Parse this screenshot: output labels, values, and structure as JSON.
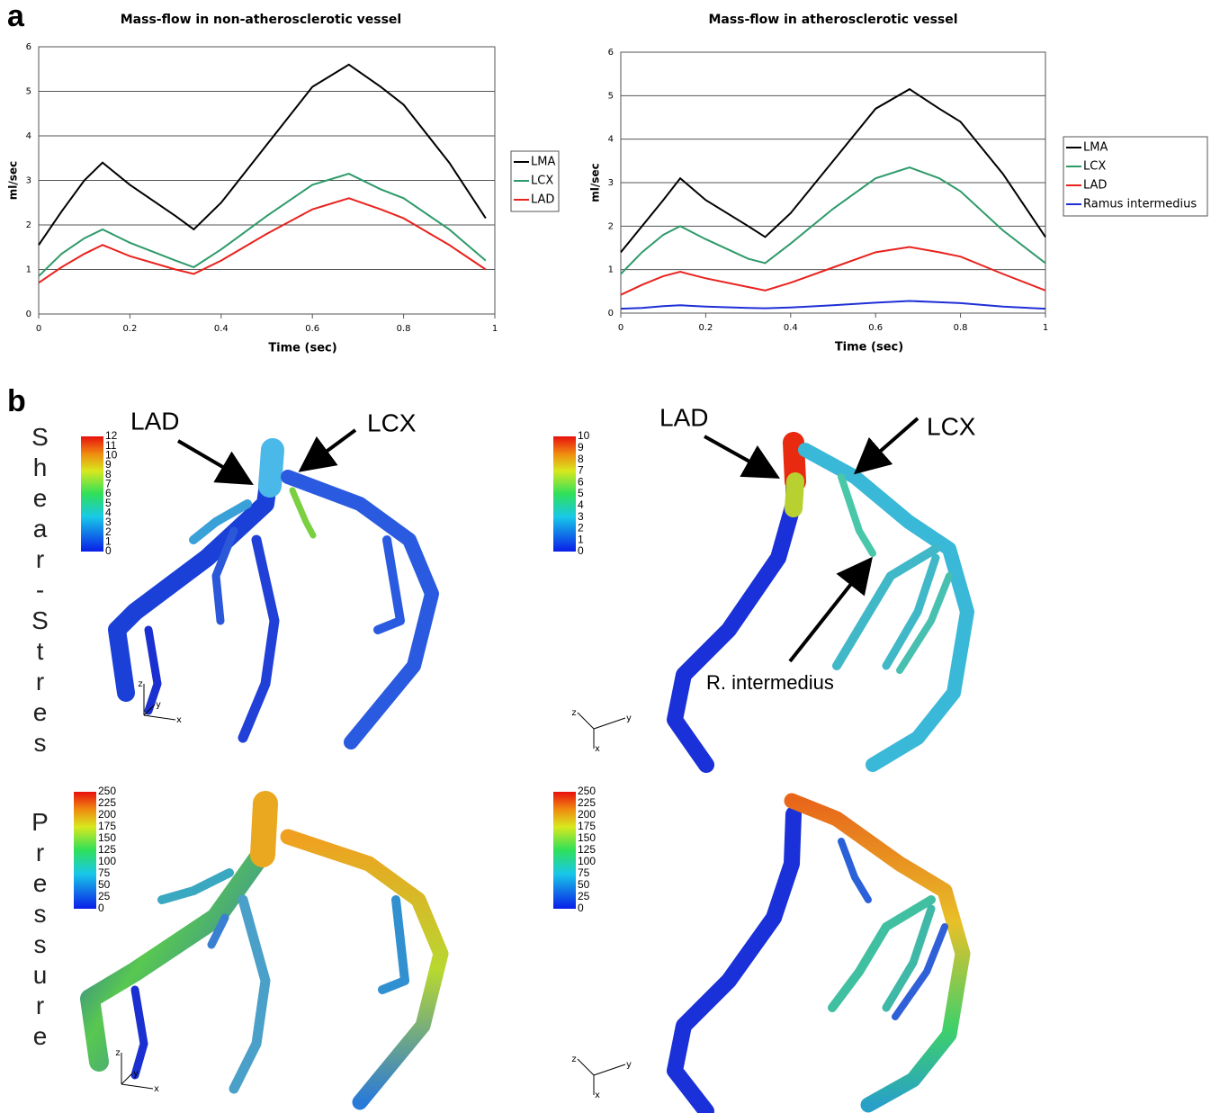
{
  "panel_a_label": "a",
  "chart_data": [
    {
      "type": "line",
      "title": "Mass-flow in non-atherosclerotic vessel",
      "xlabel": "Time (sec)",
      "ylabel": "ml/sec",
      "x": [
        0,
        0.05,
        0.1,
        0.14,
        0.2,
        0.3,
        0.34,
        0.4,
        0.5,
        0.6,
        0.68,
        0.75,
        0.8,
        0.9,
        0.98
      ],
      "series": [
        {
          "name": "LMA",
          "color": "#000000",
          "values": [
            1.55,
            2.3,
            3.0,
            3.4,
            2.9,
            2.2,
            1.9,
            2.5,
            3.8,
            5.1,
            5.6,
            5.1,
            4.7,
            3.4,
            2.15
          ]
        },
        {
          "name": "LCX",
          "color": "#2e9a6a",
          "values": [
            0.85,
            1.35,
            1.7,
            1.9,
            1.6,
            1.2,
            1.05,
            1.45,
            2.2,
            2.9,
            3.15,
            2.8,
            2.6,
            1.9,
            1.2
          ]
        },
        {
          "name": "LAD",
          "color": "#e8231e",
          "values": [
            0.7,
            1.05,
            1.35,
            1.55,
            1.3,
            1.0,
            0.9,
            1.2,
            1.8,
            2.35,
            2.6,
            2.35,
            2.15,
            1.55,
            1.0
          ]
        }
      ],
      "xlim": [
        0,
        1
      ],
      "ylim": [
        0,
        6
      ],
      "xticks": [
        0,
        0.2,
        0.4,
        0.6,
        0.8,
        1
      ],
      "yticks": [
        0,
        1,
        2,
        3,
        4,
        5,
        6
      ],
      "grid": true,
      "legend": "right"
    },
    {
      "type": "line",
      "title": "Mass-flow in atherosclerotic vessel",
      "xlabel": "Time (sec)",
      "ylabel": "ml/sec",
      "x": [
        0,
        0.05,
        0.1,
        0.14,
        0.2,
        0.3,
        0.34,
        0.4,
        0.5,
        0.6,
        0.68,
        0.75,
        0.8,
        0.9,
        1
      ],
      "series": [
        {
          "name": "LMA",
          "color": "#000000",
          "values": [
            1.4,
            2.0,
            2.6,
            3.1,
            2.6,
            2.0,
            1.75,
            2.3,
            3.5,
            4.7,
            5.15,
            4.7,
            4.4,
            3.2,
            1.75
          ]
        },
        {
          "name": "LCX",
          "color": "#2e9a6a",
          "values": [
            0.9,
            1.4,
            1.8,
            2.0,
            1.7,
            1.25,
            1.15,
            1.6,
            2.4,
            3.1,
            3.35,
            3.1,
            2.8,
            1.9,
            1.15
          ]
        },
        {
          "name": "LAD",
          "color": "#e8231e",
          "values": [
            0.42,
            0.65,
            0.85,
            0.95,
            0.8,
            0.6,
            0.52,
            0.7,
            1.05,
            1.4,
            1.52,
            1.4,
            1.3,
            0.9,
            0.52
          ]
        },
        {
          "name": "Ramus intermedius",
          "color": "#1f2fd6",
          "values": [
            0.1,
            0.12,
            0.16,
            0.18,
            0.15,
            0.12,
            0.11,
            0.13,
            0.18,
            0.24,
            0.28,
            0.25,
            0.23,
            0.15,
            0.1
          ]
        }
      ],
      "xlim": [
        0,
        1
      ],
      "ylim": [
        0,
        6
      ],
      "xticks": [
        0,
        0.2,
        0.4,
        0.6,
        0.8,
        1
      ],
      "yticks": [
        0,
        1,
        2,
        3,
        4,
        5,
        6
      ],
      "grid": true,
      "legend": "right"
    }
  ],
  "panel_b": {
    "label": "b",
    "row_labels": [
      "Shear-Stres",
      "Pressure"
    ],
    "callouts": [
      "LAD",
      "LCX",
      "LAD",
      "LCX",
      "R. intermedius"
    ],
    "colorbars": [
      {
        "ticks": [
          0,
          1,
          2,
          3,
          4,
          5,
          6,
          7,
          8,
          9,
          10,
          11,
          12
        ]
      },
      {
        "ticks": [
          0,
          1,
          2,
          3,
          4,
          5,
          6,
          7,
          8,
          9,
          10
        ]
      },
      {
        "ticks": [
          0,
          25,
          50,
          75,
          100,
          125,
          150,
          175,
          200,
          225,
          250
        ]
      },
      {
        "ticks": [
          0,
          25,
          50,
          75,
          100,
          125,
          150,
          175,
          200,
          225,
          250
        ]
      }
    ],
    "axis_triads": [
      [
        "z",
        "y",
        "x"
      ],
      [
        "z",
        "y",
        "x"
      ],
      [
        "z",
        "y",
        "x"
      ],
      [
        "z",
        "y",
        "x"
      ]
    ]
  }
}
